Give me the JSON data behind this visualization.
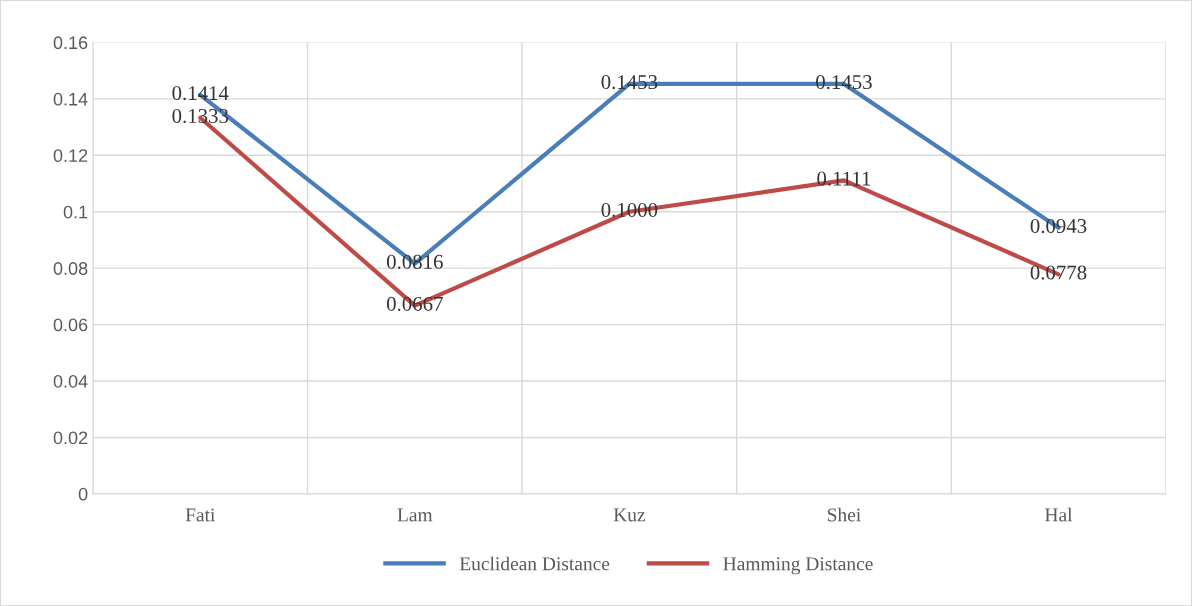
{
  "chart_data": {
    "type": "line",
    "categories": [
      "Fati",
      "Lam",
      "Kuz",
      "Shei",
      "Hal"
    ],
    "series": [
      {
        "name": "Euclidean Distance",
        "color": "#4a7ebb",
        "values": [
          0.1414,
          0.0816,
          0.1453,
          0.1453,
          0.0943
        ],
        "value_labels": [
          "0.1414",
          "0.0816",
          "0.1453",
          "0.1453",
          "0.0943"
        ]
      },
      {
        "name": "Hamming Distance",
        "color": "#be4b48",
        "values": [
          0.1333,
          0.0667,
          0.1,
          0.1111,
          0.0778
        ],
        "value_labels": [
          "0.1333",
          "0.0667",
          "0.1000",
          "0.1111",
          "0.0778"
        ]
      }
    ],
    "ylim": [
      0,
      0.16
    ],
    "yticks": [
      {
        "value": 0,
        "label": "0"
      },
      {
        "value": 0.02,
        "label": "0.02"
      },
      {
        "value": 0.04,
        "label": "0.04"
      },
      {
        "value": 0.06,
        "label": "0.06"
      },
      {
        "value": 0.08,
        "label": "0.08"
      },
      {
        "value": 0.1,
        "label": "0.1"
      },
      {
        "value": 0.12,
        "label": "0.12"
      },
      {
        "value": 0.14,
        "label": "0.14"
      },
      {
        "value": 0.16,
        "label": "0.16"
      }
    ],
    "grid": true,
    "legend": "bottom",
    "marker": "none",
    "line_style": "solid"
  }
}
